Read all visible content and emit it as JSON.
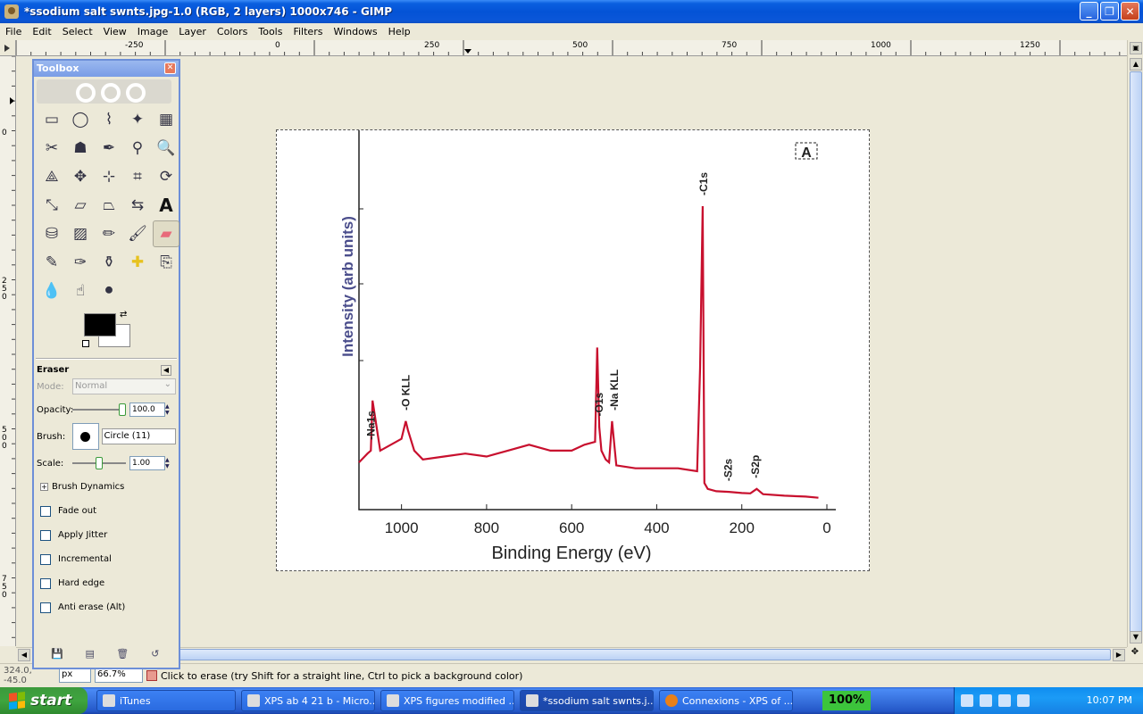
{
  "window": {
    "title": "*ssodium salt swnts.jpg-1.0 (RGB, 2 layers) 1000x746 - GIMP",
    "buttons": {
      "minimize": "_",
      "maximize": "❐",
      "close": "✕"
    }
  },
  "menu": [
    "File",
    "Edit",
    "Select",
    "View",
    "Image",
    "Layer",
    "Colors",
    "Tools",
    "Filters",
    "Windows",
    "Help"
  ],
  "ruler": {
    "top": [
      "-250",
      "0",
      "250",
      "500",
      "750",
      "1000",
      "1250"
    ],
    "left": [
      "0",
      "250",
      "500",
      "750"
    ]
  },
  "toolbox": {
    "title": "Toolbox",
    "tools": [
      {
        "name": "rect-select-tool-icon",
        "glyph": "▭"
      },
      {
        "name": "ellipse-select-tool-icon",
        "glyph": "◯"
      },
      {
        "name": "free-select-tool-icon",
        "glyph": "⌇"
      },
      {
        "name": "fuzzy-select-tool-icon",
        "glyph": "✦"
      },
      {
        "name": "select-by-color-tool-icon",
        "glyph": "▦"
      },
      {
        "name": "scissors-tool-icon",
        "glyph": "✂"
      },
      {
        "name": "foreground-select-tool-icon",
        "glyph": "☗"
      },
      {
        "name": "paths-tool-icon",
        "glyph": "✒"
      },
      {
        "name": "color-picker-tool-icon",
        "glyph": "⚲"
      },
      {
        "name": "zoom-tool-icon",
        "glyph": "🔍"
      },
      {
        "name": "measure-tool-icon",
        "glyph": "⟁"
      },
      {
        "name": "move-tool-icon",
        "glyph": "✥"
      },
      {
        "name": "align-tool-icon",
        "glyph": "⊹"
      },
      {
        "name": "crop-tool-icon",
        "glyph": "⌗"
      },
      {
        "name": "rotate-tool-icon",
        "glyph": "⟳"
      },
      {
        "name": "scale-tool-icon",
        "glyph": "⤡"
      },
      {
        "name": "shear-tool-icon",
        "glyph": "▱"
      },
      {
        "name": "perspective-tool-icon",
        "glyph": "⏢"
      },
      {
        "name": "flip-tool-icon",
        "glyph": "⇆"
      },
      {
        "name": "text-tool-icon",
        "glyph": "A"
      },
      {
        "name": "bucket-fill-tool-icon",
        "glyph": "⛁"
      },
      {
        "name": "blend-tool-icon",
        "glyph": "▨"
      },
      {
        "name": "pencil-tool-icon",
        "glyph": "✏"
      },
      {
        "name": "paintbrush-tool-icon",
        "glyph": "🖌"
      },
      {
        "name": "eraser-tool-icon",
        "glyph": "▰"
      },
      {
        "name": "airbrush-tool-icon",
        "glyph": "✎"
      },
      {
        "name": "ink-tool-icon",
        "glyph": "✑"
      },
      {
        "name": "clone-tool-icon",
        "glyph": "⚱"
      },
      {
        "name": "heal-tool-icon",
        "glyph": "✚"
      },
      {
        "name": "perspective-clone-tool-icon",
        "glyph": "⎘"
      },
      {
        "name": "blur-sharpen-tool-icon",
        "glyph": "💧"
      },
      {
        "name": "smudge-tool-icon",
        "glyph": "☝"
      },
      {
        "name": "dodge-burn-tool-icon",
        "glyph": "⚫"
      }
    ],
    "active_tool_index": 24,
    "colors": {
      "foreground": "#000000",
      "background": "#ffffff"
    },
    "options": {
      "title": "Eraser",
      "mode_label": "Mode:",
      "mode_value": "Normal",
      "opacity_label": "Opacity:",
      "opacity_value": "100.0",
      "opacity_fraction": 1.0,
      "brush_label": "Brush:",
      "brush_name": "Circle (11)",
      "scale_label": "Scale:",
      "scale_value": "1.00",
      "scale_fraction": 0.5,
      "brush_dynamics": "Brush Dynamics",
      "checks": [
        "Fade out",
        "Apply Jitter",
        "Incremental",
        "Hard edge",
        "Anti erase  (Alt)"
      ]
    }
  },
  "statusbar": {
    "coords": "324.0, -45.0",
    "unit": "px",
    "zoom": "66.7%",
    "message": "Click to erase (try Shift for a straight line, Ctrl to pick a background color)"
  },
  "image": {
    "chart_data": {
      "type": "line",
      "title": "",
      "panel_label": "A",
      "xlabel": "Binding Energy (eV)",
      "ylabel": "Intensity (arb units)",
      "xlim": [
        1100,
        0
      ],
      "xticks": [
        "1000",
        "800",
        "600",
        "400",
        "200",
        "0"
      ],
      "series": [
        {
          "color": "#c8102e",
          "x": [
            1100,
            1080,
            1072,
            1068,
            1050,
            1000,
            990,
            985,
            970,
            950,
            900,
            850,
            800,
            750,
            700,
            650,
            600,
            570,
            545,
            540,
            535,
            530,
            520,
            512,
            505,
            495,
            450,
            400,
            350,
            305,
            298,
            292,
            288,
            280,
            260,
            230,
            200,
            180,
            165,
            150,
            100,
            50,
            20
          ],
          "y": [
            13,
            16,
            17,
            34,
            17,
            21,
            27,
            24,
            17,
            14,
            15,
            16,
            15,
            17,
            19,
            17,
            17,
            19,
            20,
            52,
            25,
            17,
            14,
            13,
            27,
            12,
            11,
            11,
            11,
            10,
            45,
            100,
            6,
            4,
            3.2,
            3,
            2.6,
            2.5,
            4,
            2.2,
            1.7,
            1.4,
            1
          ]
        }
      ],
      "annotations": [
        {
          "text": "-Na1s",
          "x": 1072
        },
        {
          "text": "-O KLL",
          "x": 990
        },
        {
          "text": "-O1s",
          "x": 535
        },
        {
          "text": "-Na KLL",
          "x": 500
        },
        {
          "text": "-C1s",
          "x": 290
        },
        {
          "text": "-S2s",
          "x": 232
        },
        {
          "text": "-S2p",
          "x": 168
        }
      ]
    }
  },
  "taskbar": {
    "start": "start",
    "tasks": [
      {
        "label": "iTunes",
        "active": false
      },
      {
        "label": "XPS ab 4 21 b - Micro...",
        "active": false
      },
      {
        "label": "XPS figures modified ...",
        "active": false
      },
      {
        "label": "*ssodium salt swnts.j...",
        "active": true
      },
      {
        "label": "Connexions - XPS of ...",
        "active": false
      }
    ],
    "battery": "100%",
    "clock": "10:07 PM"
  }
}
